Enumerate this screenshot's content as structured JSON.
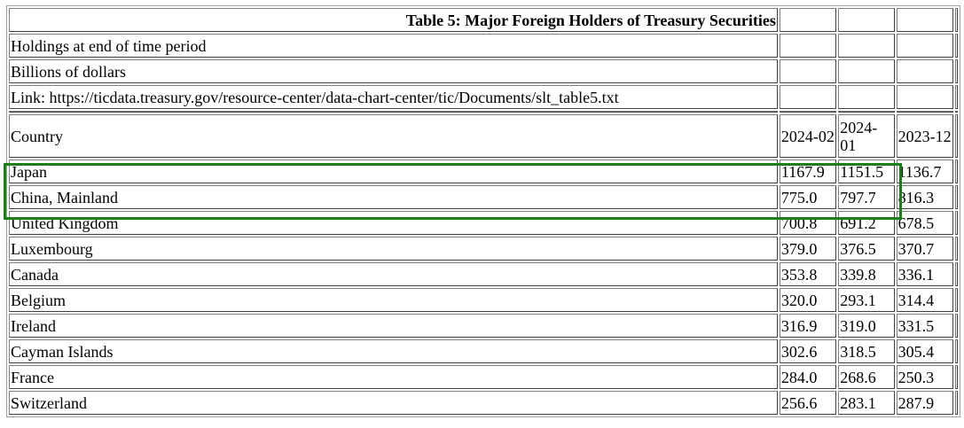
{
  "table": {
    "title": "Table 5: Major Foreign Holders of Treasury Securities",
    "notes": [
      "Holdings at end of time period",
      "Billions of dollars",
      "Link: https://ticdata.treasury.gov/resource-center/data-chart-center/tic/Documents/slt_table5.txt"
    ],
    "columns": [
      "Country",
      "2024-02",
      "2024-01",
      "2023-12"
    ],
    "rows": [
      {
        "country": "Japan",
        "values": [
          "1167.9",
          "1151.5",
          "1136.7"
        ]
      },
      {
        "country": "China, Mainland",
        "values": [
          "775.0",
          "797.7",
          "816.3"
        ]
      },
      {
        "country": "United Kingdom",
        "values": [
          "700.8",
          "691.2",
          "678.5"
        ]
      },
      {
        "country": "Luxembourg",
        "values": [
          "379.0",
          "376.5",
          "370.7"
        ]
      },
      {
        "country": "Canada",
        "values": [
          "353.8",
          "339.8",
          "336.1"
        ]
      },
      {
        "country": "Belgium",
        "values": [
          "320.0",
          "293.1",
          "314.4"
        ]
      },
      {
        "country": "Ireland",
        "values": [
          "316.9",
          "319.0",
          "331.5"
        ]
      },
      {
        "country": "Cayman Islands",
        "values": [
          "302.6",
          "318.5",
          "305.4"
        ]
      },
      {
        "country": "France",
        "values": [
          "284.0",
          "268.6",
          "250.3"
        ]
      },
      {
        "country": "Switzerland",
        "values": [
          "256.6",
          "283.1",
          "287.9"
        ]
      }
    ]
  },
  "highlight": {
    "color": "#1b7f1b",
    "rows": [
      "Japan",
      "China, Mainland"
    ]
  }
}
